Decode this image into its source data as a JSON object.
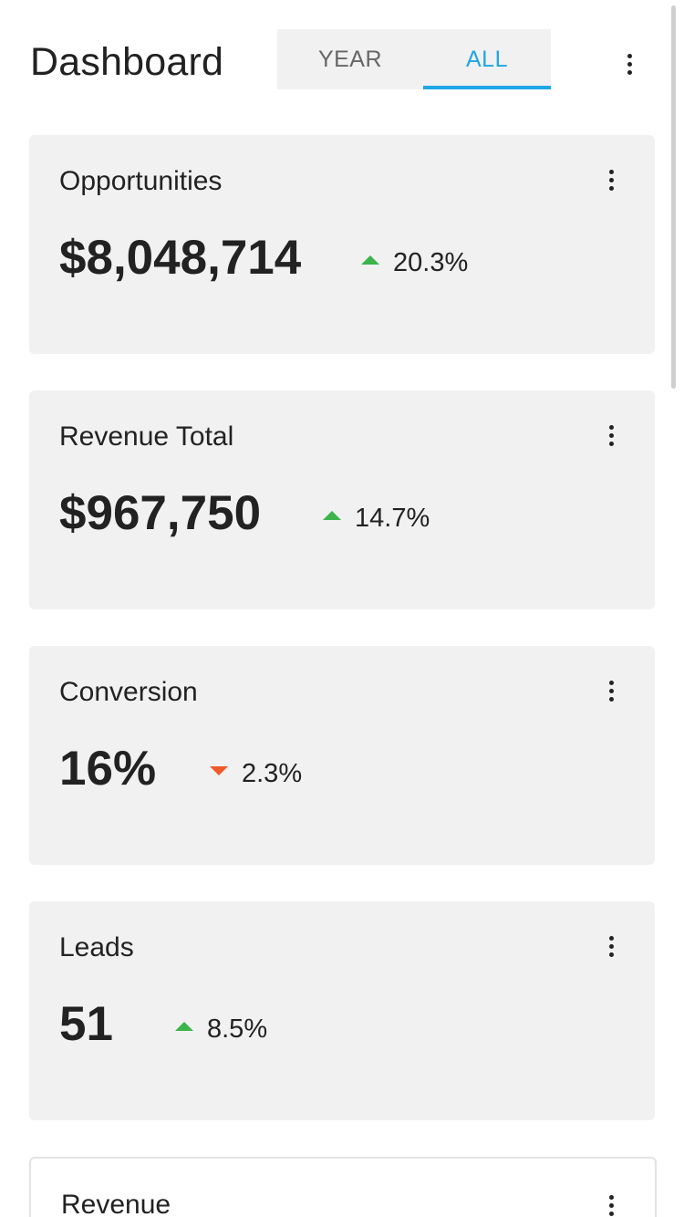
{
  "header": {
    "title": "Dashboard",
    "tabs": [
      {
        "label": "YEAR",
        "selected": false
      },
      {
        "label": "ALL",
        "selected": true
      }
    ],
    "menu_icon": "more-vertical-icon"
  },
  "cards": [
    {
      "title": "Opportunities",
      "value": "$8,048,714",
      "trend": "up",
      "delta": "20.3%"
    },
    {
      "title": "Revenue Total",
      "value": "$967,750",
      "trend": "up",
      "delta": "14.7%"
    },
    {
      "title": "Conversion",
      "value": "16%",
      "trend": "down",
      "delta": "2.3%"
    },
    {
      "title": "Leads",
      "value": "51",
      "trend": "up",
      "delta": "8.5%"
    },
    {
      "title": "Revenue"
    }
  ],
  "colors": {
    "accent": "#1ea7e6",
    "up": "#3bb54a",
    "down": "#f15a29",
    "card_bg": "#f1f1f1"
  }
}
